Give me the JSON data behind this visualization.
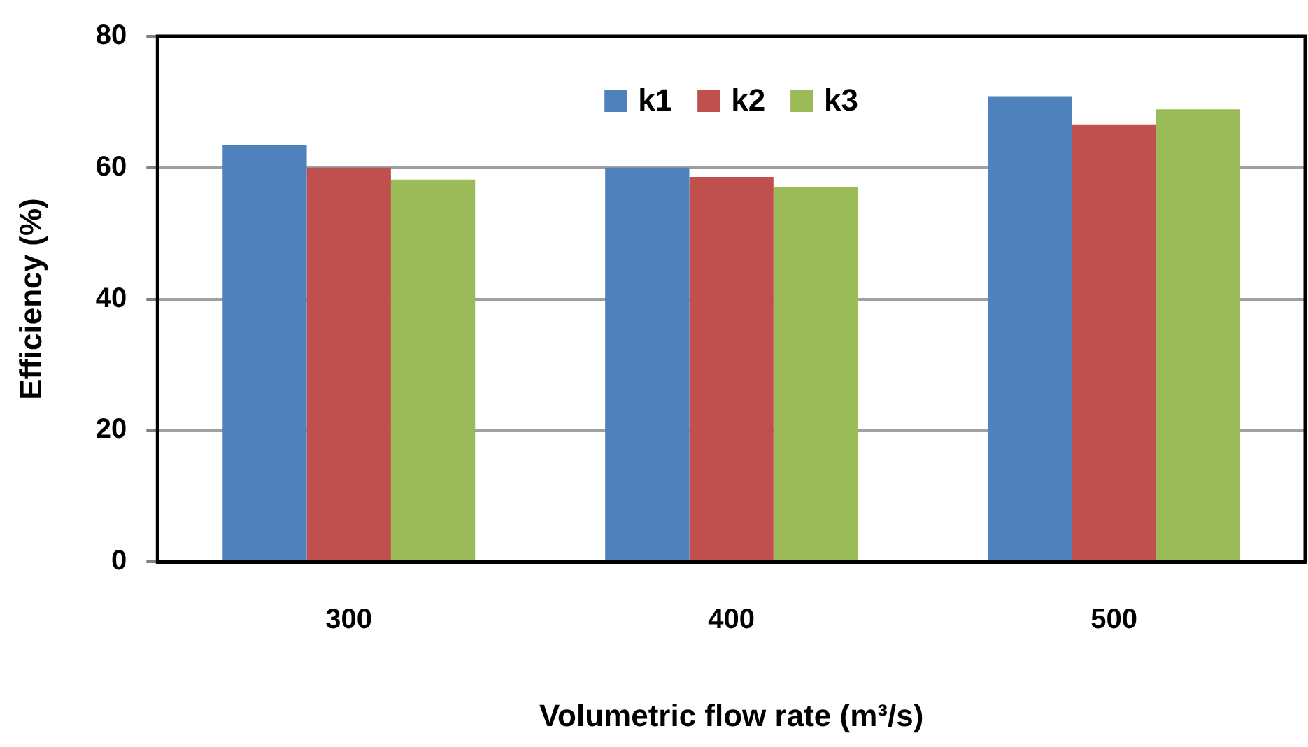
{
  "chart_data": {
    "type": "bar",
    "xlabel": "Volumetric flow rate (m³/s)",
    "ylabel": "Efficiency (%)",
    "categories": [
      "300",
      "400",
      "500"
    ],
    "series": [
      {
        "name": "k1",
        "color": "#4f81bd",
        "values": [
          63.4,
          60,
          70.9
        ]
      },
      {
        "name": "k2",
        "color": "#c0504d",
        "values": [
          60,
          58.6,
          66.6
        ]
      },
      {
        "name": "k3",
        "color": "#9bbb59",
        "values": [
          58.2,
          57,
          68.9
        ]
      }
    ],
    "ylim": [
      0,
      80
    ],
    "yticks": [
      0,
      20,
      40,
      60,
      80
    ],
    "grid": "y",
    "legend": "top"
  }
}
